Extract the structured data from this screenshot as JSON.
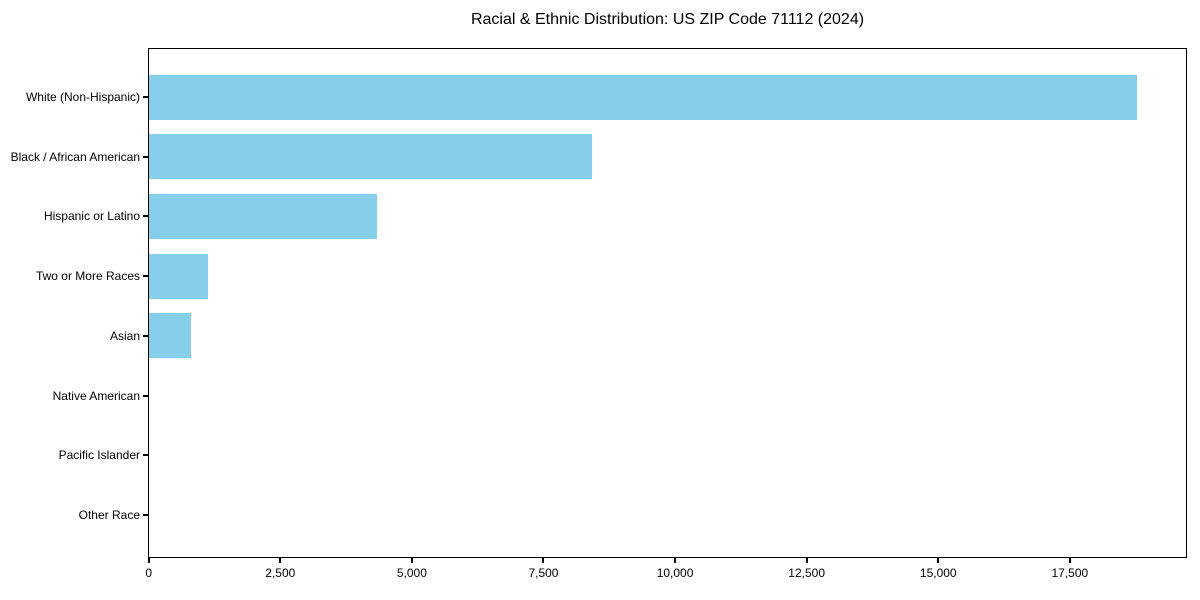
{
  "chart_data": {
    "type": "bar",
    "orientation": "horizontal",
    "title": "Racial & Ethnic Distribution: US ZIP Code 71112 (2024)",
    "categories": [
      "White (Non-Hispanic)",
      "Black / African American",
      "Hispanic or Latino",
      "Two or More Races",
      "Asian",
      "Native American",
      "Pacific Islander",
      "Other Race"
    ],
    "values": [
      18780,
      8430,
      4340,
      1130,
      800,
      0,
      0,
      0
    ],
    "xlabel": "",
    "ylabel": "",
    "xlim": [
      0,
      19720
    ],
    "xticks": [
      0,
      2500,
      5000,
      7500,
      10000,
      12500,
      15000,
      17500
    ],
    "xtick_labels": [
      "0",
      "2,500",
      "5,000",
      "7,500",
      "10,000",
      "12,500",
      "15,000",
      "17,500"
    ],
    "bar_color": "#87CEEB",
    "background_color": "#ffffff",
    "axis_color": "#000000",
    "grid": false,
    "legend": null
  }
}
